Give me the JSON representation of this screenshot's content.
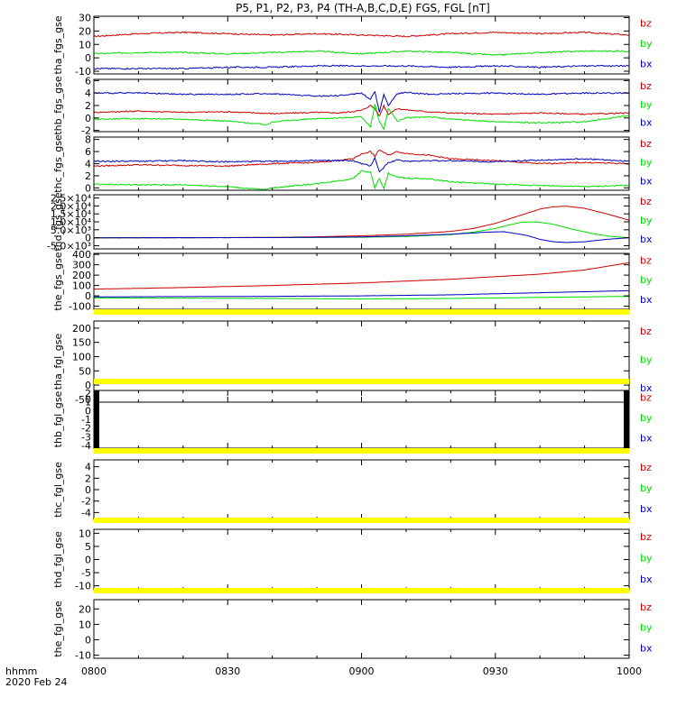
{
  "title": "P5, P1, P2, P3, P4 (TH-A,B,C,D,E) FGS, FGL [nT]",
  "footer": {
    "time_label": "hhmm",
    "date_label": "2020 Feb 24"
  },
  "colors": {
    "bz": "#cc0000",
    "by": "#00dd00",
    "bx": "#0000bb",
    "flag": "#ffff00",
    "axis": "#000000"
  },
  "x_axis": {
    "range": [
      "0800",
      "1000"
    ],
    "ticks": [
      {
        "label": "0800",
        "minutes": 0
      },
      {
        "label": "0830",
        "minutes": 30
      },
      {
        "label": "0900",
        "minutes": 60
      },
      {
        "label": "0930",
        "minutes": 90
      },
      {
        "label": "1000",
        "minutes": 120
      }
    ]
  },
  "chart_data": [
    {
      "type": "line",
      "ylabel": "tha_fgs_gse",
      "ylim": [
        -12,
        31
      ],
      "yticks": [
        "30",
        "20",
        "10",
        "0",
        "-10"
      ],
      "ytick_values": [
        30,
        20,
        10,
        0,
        -10
      ],
      "legend": [
        "bz",
        "by",
        "bx"
      ],
      "flag_bar": false,
      "series": [
        {
          "name": "bz",
          "x": [
            0,
            10,
            20,
            30,
            40,
            50,
            60,
            70,
            80,
            90,
            100,
            110,
            120
          ],
          "values": [
            16,
            18,
            19,
            18,
            17,
            18,
            17,
            16,
            18,
            19,
            18,
            19,
            17
          ]
        },
        {
          "name": "by",
          "x": [
            0,
            10,
            20,
            30,
            40,
            50,
            60,
            70,
            80,
            90,
            100,
            110,
            120
          ],
          "values": [
            3,
            4,
            4,
            3,
            4,
            5,
            3,
            5,
            4,
            2,
            4,
            5,
            5
          ]
        },
        {
          "name": "bx",
          "x": [
            0,
            10,
            20,
            30,
            40,
            50,
            60,
            70,
            80,
            90,
            100,
            110,
            120
          ],
          "values": [
            -8,
            -8,
            -8,
            -7,
            -7,
            -6,
            -6,
            -6,
            -7,
            -6,
            -7,
            -6,
            -6
          ]
        }
      ]
    },
    {
      "type": "line",
      "ylabel": "thb_fgs_gse",
      "ylim": [
        -2.2,
        6.2
      ],
      "yticks": [
        "6",
        "4",
        "2",
        "0",
        "-2"
      ],
      "ytick_values": [
        6,
        4,
        2,
        0,
        -2
      ],
      "legend": [
        "bz",
        "by",
        "bx"
      ],
      "flag_bar": false,
      "series": [
        {
          "name": "bz",
          "x": [
            0,
            10,
            20,
            30,
            40,
            50,
            55,
            60,
            62,
            63,
            64,
            65,
            66,
            68,
            70,
            75,
            80,
            90,
            100,
            110,
            120
          ],
          "values": [
            0.9,
            1.1,
            0.9,
            1.0,
            0.7,
            0.9,
            0.8,
            1.2,
            2.0,
            1.5,
            0.3,
            2.0,
            0.6,
            1.5,
            1.3,
            1.0,
            0.8,
            0.6,
            0.8,
            0.6,
            0.8
          ]
        },
        {
          "name": "by",
          "x": [
            0,
            10,
            20,
            30,
            39,
            40,
            50,
            55,
            60,
            62,
            63,
            64,
            65,
            66,
            68,
            70,
            75,
            80,
            90,
            100,
            110,
            120
          ],
          "values": [
            -0.2,
            -0.1,
            -0.2,
            -0.5,
            -1.1,
            -0.6,
            -0.1,
            0.0,
            0.2,
            -1.5,
            2.2,
            -0.6,
            -1.8,
            1.5,
            -0.5,
            0.0,
            0.2,
            -0.2,
            -0.6,
            -0.8,
            -0.6,
            0.4
          ]
        },
        {
          "name": "bx",
          "x": [
            0,
            10,
            20,
            30,
            40,
            50,
            55,
            60,
            62,
            63,
            64,
            65,
            66,
            68,
            70,
            75,
            80,
            90,
            100,
            110,
            120
          ],
          "values": [
            4.0,
            4.0,
            3.8,
            3.8,
            3.9,
            3.5,
            3.6,
            4.0,
            3.0,
            4.2,
            1.0,
            3.8,
            2.0,
            3.9,
            4.1,
            3.8,
            3.9,
            4.0,
            3.8,
            4.0,
            4.0
          ]
        }
      ]
    },
    {
      "type": "line",
      "ylabel": "thc_fgs_gse",
      "ylim": [
        -0.4,
        8.4
      ],
      "yticks": [
        "8",
        "6",
        "4",
        "2",
        "0"
      ],
      "ytick_values": [
        8,
        6,
        4,
        2,
        0
      ],
      "legend": [
        "bz",
        "by",
        "bx"
      ],
      "flag_bar": false,
      "series": [
        {
          "name": "bz",
          "x": [
            0,
            10,
            20,
            30,
            40,
            50,
            58,
            60,
            62,
            63,
            64,
            66,
            68,
            70,
            75,
            80,
            90,
            100,
            110,
            120
          ],
          "values": [
            3.6,
            3.8,
            3.7,
            3.6,
            4.0,
            4.2,
            4.8,
            5.6,
            6.0,
            5.2,
            6.3,
            5.4,
            6.0,
            5.7,
            5.4,
            4.8,
            4.5,
            4.0,
            4.2,
            4.0
          ]
        },
        {
          "name": "by",
          "x": [
            0,
            10,
            20,
            30,
            38,
            40,
            50,
            58,
            60,
            62,
            63,
            64,
            65,
            66,
            68,
            70,
            75,
            80,
            90,
            100,
            110,
            120
          ],
          "values": [
            0.6,
            0.5,
            0.5,
            0.2,
            -0.3,
            0.0,
            0.7,
            1.5,
            2.8,
            2.6,
            0.0,
            1.6,
            -0.2,
            2.4,
            1.8,
            1.6,
            1.5,
            1.0,
            0.6,
            0.4,
            0.2,
            0.4
          ]
        },
        {
          "name": "bx",
          "x": [
            0,
            10,
            20,
            30,
            40,
            50,
            58,
            60,
            62,
            63,
            64,
            66,
            68,
            70,
            75,
            80,
            90,
            100,
            110,
            120
          ],
          "values": [
            4.4,
            4.4,
            4.5,
            4.3,
            4.4,
            4.5,
            4.5,
            4.0,
            3.6,
            5.0,
            2.6,
            4.2,
            4.6,
            4.4,
            4.5,
            4.5,
            4.3,
            4.6,
            4.8,
            4.4
          ]
        }
      ]
    },
    {
      "type": "line",
      "ylabel": "thd_fgs_gse",
      "ylim": [
        -7000,
        27000
      ],
      "yticks": [
        "2.5×10⁴",
        "2.0×10⁴",
        "1.5×10⁴",
        "1.0×10⁴",
        "5.0×10³",
        "0",
        "-5.0×10³"
      ],
      "ytick_values": [
        25000,
        20000,
        15000,
        10000,
        5000,
        0,
        -5000
      ],
      "legend": [
        "bz",
        "by",
        "bx"
      ],
      "flag_bar": false,
      "series": [
        {
          "name": "bz",
          "x": [
            0,
            20,
            40,
            50,
            60,
            70,
            80,
            85,
            90,
            95,
            100,
            103,
            106,
            110,
            115,
            120
          ],
          "values": [
            0,
            0,
            200,
            600,
            1200,
            2200,
            4000,
            5800,
            9000,
            13500,
            18000,
            19500,
            19800,
            18500,
            15000,
            11000
          ]
        },
        {
          "name": "by",
          "x": [
            0,
            40,
            60,
            70,
            80,
            85,
            90,
            93,
            96,
            99,
            103,
            107,
            112,
            116,
            120
          ],
          "values": [
            0,
            100,
            300,
            800,
            2000,
            3500,
            5800,
            8000,
            9800,
            10000,
            8500,
            5500,
            2500,
            800,
            0
          ]
        },
        {
          "name": "bx",
          "x": [
            0,
            40,
            60,
            70,
            80,
            88,
            92,
            97,
            100,
            103,
            106,
            110,
            115,
            120
          ],
          "values": [
            0,
            100,
            500,
            1200,
            2200,
            3500,
            3800,
            1500,
            -1000,
            -2500,
            -3000,
            -2500,
            -1000,
            0
          ]
        }
      ]
    },
    {
      "type": "line",
      "ylabel": "the_fgs_gse",
      "ylim": [
        -130,
        410
      ],
      "yticks": [
        "400",
        "300",
        "200",
        "100",
        "0",
        "-100"
      ],
      "ytick_values": [
        400,
        300,
        200,
        100,
        0,
        -100
      ],
      "legend": [
        "bz",
        "by",
        "bx"
      ],
      "flag_bar": false,
      "series": [
        {
          "name": "bz",
          "x": [
            0,
            20,
            40,
            60,
            80,
            100,
            110,
            120
          ],
          "values": [
            65,
            80,
            100,
            125,
            160,
            210,
            250,
            320
          ]
        },
        {
          "name": "by",
          "x": [
            0,
            40,
            60,
            80,
            100,
            120
          ],
          "values": [
            -20,
            -25,
            -30,
            -25,
            -15,
            -5
          ]
        },
        {
          "name": "bx",
          "x": [
            0,
            40,
            60,
            80,
            100,
            120
          ],
          "values": [
            -10,
            -5,
            0,
            10,
            30,
            50
          ]
        }
      ]
    },
    {
      "type": "line",
      "ylabel": "tha_fgl_gse",
      "ylim": [
        -60,
        225
      ],
      "yticks": [
        "200",
        "150",
        "100",
        "50",
        "0",
        "-50"
      ],
      "ytick_values": [
        200,
        150,
        100,
        50,
        0,
        -50
      ],
      "legend": [
        "bz",
        "by",
        "bx"
      ],
      "flag_bar": true,
      "series": []
    },
    {
      "type": "line",
      "ylabel": "thb_fgl_gse",
      "ylim": [
        -4.3,
        2.3
      ],
      "yticks": [
        "2",
        "1",
        "0",
        "-1",
        "-2",
        "-3",
        "-4"
      ],
      "ytick_values": [
        2,
        1,
        0,
        -1,
        -2,
        -3,
        -4
      ],
      "legend": [
        "bz",
        "by",
        "bx"
      ],
      "flag_bar": true,
      "edge_blocks": true,
      "series": []
    },
    {
      "type": "line",
      "ylabel": "thc_fgl_gse",
      "ylim": [
        -5.2,
        5.2
      ],
      "yticks": [
        "4",
        "2",
        "0",
        "-2",
        "-4"
      ],
      "ytick_values": [
        4,
        2,
        0,
        -2,
        -4
      ],
      "legend": [
        "bz",
        "by",
        "bx"
      ],
      "flag_bar": true,
      "series": []
    },
    {
      "type": "line",
      "ylabel": "thd_fgl_gse",
      "ylim": [
        -11.5,
        11.5
      ],
      "yticks": [
        "10",
        "5",
        "0",
        "-5",
        "-10"
      ],
      "ytick_values": [
        10,
        5,
        0,
        -5,
        -10
      ],
      "legend": [
        "bz",
        "by",
        "bx"
      ],
      "flag_bar": true,
      "series": []
    },
    {
      "type": "line",
      "ylabel": "the_fgl_gse",
      "ylim": [
        -12,
        26
      ],
      "yticks": [
        "20",
        "10",
        "0",
        "-10"
      ],
      "ytick_values": [
        20,
        10,
        0,
        -10
      ],
      "legend": [
        "bz",
        "by",
        "bx"
      ],
      "flag_bar": true,
      "series": []
    }
  ]
}
